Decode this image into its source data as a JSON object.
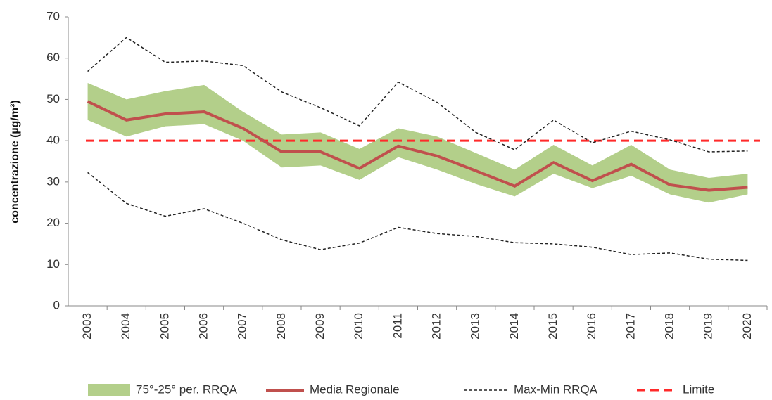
{
  "chart_data": {
    "type": "line",
    "ylabel": "concentrazione (µg/m³)",
    "categories": [
      "2003",
      "2004",
      "2005",
      "2006",
      "2007",
      "2008",
      "2009",
      "2010",
      "2011",
      "2012",
      "2013",
      "2014",
      "2015",
      "2016",
      "2017",
      "2018",
      "2019",
      "2020"
    ],
    "ylim": [
      0,
      70
    ],
    "yticks": [
      0,
      10,
      20,
      30,
      40,
      50,
      60,
      70
    ],
    "series": [
      {
        "name": "75°-25° per. RRQA",
        "color": "#b3cf8a",
        "upper": [
          54,
          50,
          52,
          53.5,
          47,
          41.5,
          42,
          38,
          43,
          41,
          37,
          33,
          39,
          34,
          39,
          33,
          31,
          32
        ],
        "lower": [
          45,
          41,
          43.5,
          44,
          40,
          33.5,
          34,
          30.5,
          36,
          33,
          29.5,
          26.5,
          32,
          28.5,
          31.5,
          27,
          25,
          27
        ]
      },
      {
        "name": "Media Regionale",
        "color": "#c0504d",
        "values": [
          49.5,
          45,
          46.5,
          47,
          43,
          37.3,
          37.3,
          33.3,
          38.7,
          36.3,
          32.7,
          29,
          34.7,
          30.3,
          34.3,
          29.3,
          28,
          28.7
        ]
      },
      {
        "name": "Max-Min RRQA",
        "color": "#222222",
        "max": [
          56.8,
          65,
          59,
          59.3,
          58.2,
          51.8,
          48,
          43.6,
          54.2,
          49.3,
          42,
          37.8,
          45,
          39.5,
          42.3,
          40.2,
          37.3,
          37.5
        ],
        "min": [
          32.3,
          24.8,
          21.7,
          23.5,
          20,
          16,
          13.6,
          15.2,
          19,
          17.5,
          16.8,
          15.3,
          15,
          14.2,
          12.4,
          12.8,
          11.3,
          11
        ]
      },
      {
        "name": "Limite",
        "color": "#ff2a2a",
        "value": 40
      }
    ]
  }
}
